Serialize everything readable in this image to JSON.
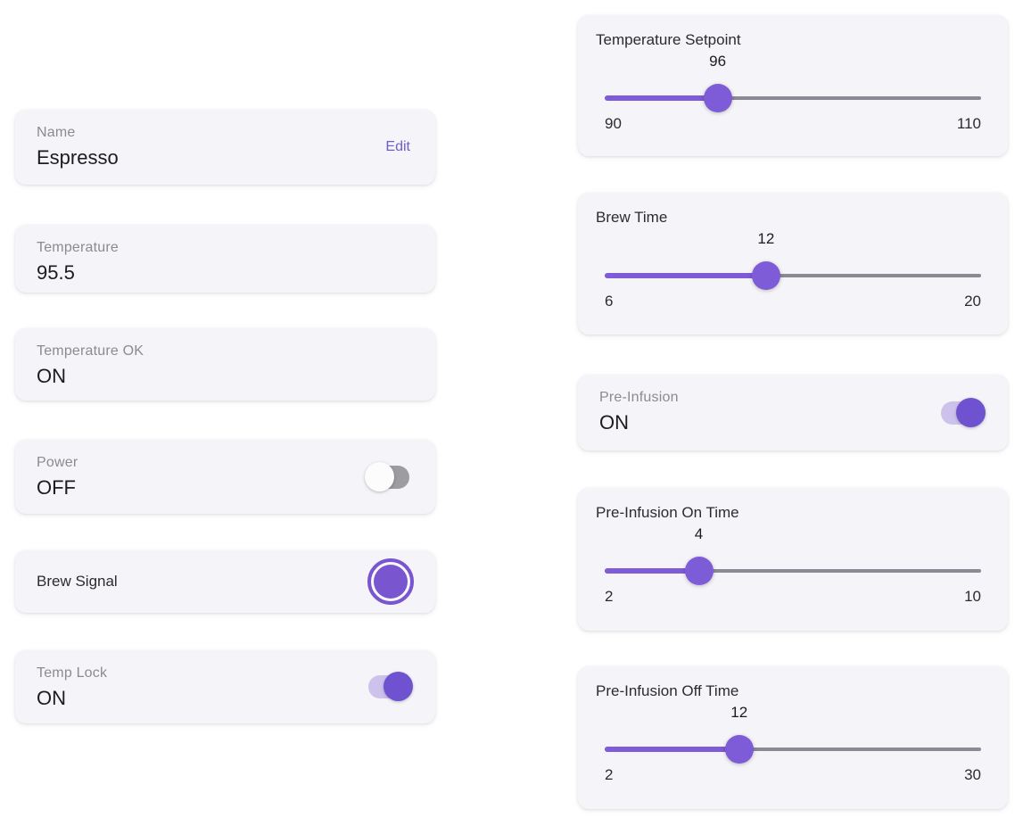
{
  "colors": {
    "accent_purple": "#7e5bd7",
    "toggle_on_knob": "#6e52cf",
    "toggle_on_track": "#cdc2ec",
    "toggle_off_knob": "#fcfcfc",
    "toggle_off_track": "#9d9ca0",
    "slider_inactive_track": "#8c8894",
    "card_background": "#f5f4f8",
    "edit_link": "#6f5fc8"
  },
  "left_cards": {
    "name": {
      "label": "Name",
      "value": "Espresso",
      "action_label": "Edit"
    },
    "temperature": {
      "label": "Temperature",
      "value": "95.5"
    },
    "temperature_ok": {
      "label": "Temperature OK",
      "value": "ON"
    },
    "power": {
      "label": "Power",
      "value": "OFF",
      "state": "off"
    },
    "brew_signal": {
      "label": "Brew Signal"
    },
    "temp_lock": {
      "label": "Temp Lock",
      "value": "ON",
      "state": "on"
    }
  },
  "right_cards": {
    "temperature_setpoint": {
      "title": "Temperature Setpoint",
      "value": 96,
      "min": 90,
      "max": 110
    },
    "brew_time": {
      "title": "Brew Time",
      "value": 12,
      "min": 6,
      "max": 20
    },
    "pre_infusion": {
      "label": "Pre-Infusion",
      "value": "ON",
      "state": "on"
    },
    "pre_infusion_on_time": {
      "title": "Pre-Infusion On Time",
      "value": 4,
      "min": 2,
      "max": 10
    },
    "pre_infusion_off_time": {
      "title": "Pre-Infusion Off Time",
      "value": 12,
      "min": 2,
      "max": 30
    }
  }
}
